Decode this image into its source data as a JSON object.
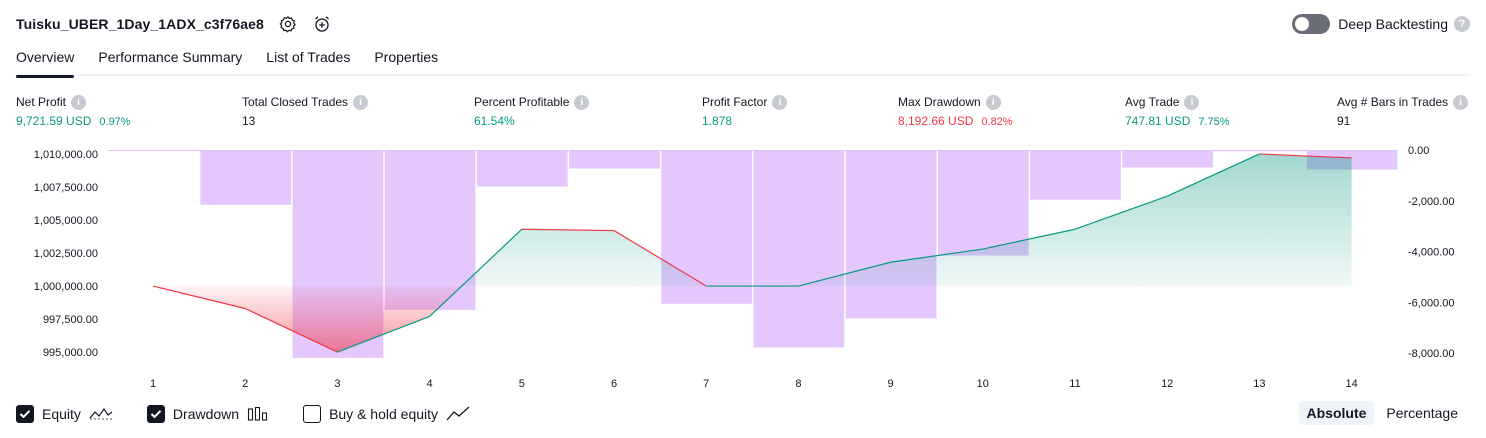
{
  "header": {
    "title": "Tuisku_UBER_1Day_1ADX_c3f76ae8",
    "settings_icon": "gear-icon",
    "alert_icon": "alarm-clock-plus-icon"
  },
  "deep_backtesting": {
    "label": "Deep Backtesting",
    "enabled": false,
    "help": "?"
  },
  "tabs": [
    {
      "label": "Overview",
      "active": true
    },
    {
      "label": "Performance Summary",
      "active": false
    },
    {
      "label": "List of Trades",
      "active": false
    },
    {
      "label": "Properties",
      "active": false
    }
  ],
  "metrics": {
    "net_profit": {
      "label": "Net Profit",
      "value": "9,721.59 USD",
      "sub": "0.97%"
    },
    "total_closed_trades": {
      "label": "Total Closed Trades",
      "value": "13"
    },
    "percent_profitable": {
      "label": "Percent Profitable",
      "value": "61.54%"
    },
    "profit_factor": {
      "label": "Profit Factor",
      "value": "1.878"
    },
    "max_drawdown": {
      "label": "Max Drawdown",
      "value": "8,192.66 USD",
      "sub": "0.82%"
    },
    "avg_trade": {
      "label": "Avg Trade",
      "value": "747.81 USD",
      "sub": "7.75%"
    },
    "avg_bars": {
      "label": "Avg # Bars in Trades",
      "value": "91"
    }
  },
  "chart_data": {
    "type": "line",
    "x": [
      1,
      2,
      3,
      4,
      5,
      6,
      7,
      8,
      9,
      10,
      11,
      12,
      13,
      14
    ],
    "x_tick_labels": [
      "1",
      "2",
      "3",
      "4",
      "5",
      "6",
      "7",
      "8",
      "9",
      "10",
      "11",
      "12",
      "13",
      "14"
    ],
    "left_axis": {
      "tick_labels": [
        "1,010,000.00",
        "1,007,500.00",
        "1,005,000.00",
        "1,002,500.00",
        "1,000,000.00",
        "997,500.00",
        "995,000.00"
      ],
      "ticks": [
        1010000,
        1007500,
        1005000,
        1002500,
        1000000,
        997500,
        995000
      ],
      "ylim": [
        994400,
        1010300
      ]
    },
    "right_axis": {
      "tick_labels": [
        "0.00",
        "-2,000.00",
        "-4,000.00",
        "-6,000.00",
        "-8,000.00"
      ],
      "ticks": [
        0,
        -2000,
        -4000,
        -6000,
        -8000
      ]
    },
    "baseline": 1000000,
    "series": [
      {
        "name": "Equity",
        "kind": "line",
        "values": [
          1000000,
          998300,
          995000,
          997700,
          1004300,
          1004200,
          1000000,
          1000000,
          1001800,
          1002800,
          1004300,
          1006800,
          1010000,
          1009700
        ],
        "up_color": "#089981",
        "down_color": "#f23645"
      },
      {
        "name": "Drawdown",
        "kind": "bar",
        "values": [
          0,
          -2160,
          -8192,
          -6300,
          -1440,
          -730,
          -6060,
          -7780,
          -6640,
          -4160,
          -1960,
          -690,
          -50,
          -770
        ],
        "color": "#e1c4fd"
      }
    ],
    "grid": false
  },
  "legend": [
    {
      "label": "Equity",
      "checked": true,
      "icon": "equity-line-icon"
    },
    {
      "label": "Drawdown",
      "checked": true,
      "icon": "drawdown-bars-icon"
    },
    {
      "label": "Buy & hold equity",
      "checked": false,
      "icon": "buy-hold-line-icon"
    }
  ],
  "mode": {
    "options": [
      "Absolute",
      "Percentage"
    ],
    "selected": "Absolute"
  }
}
